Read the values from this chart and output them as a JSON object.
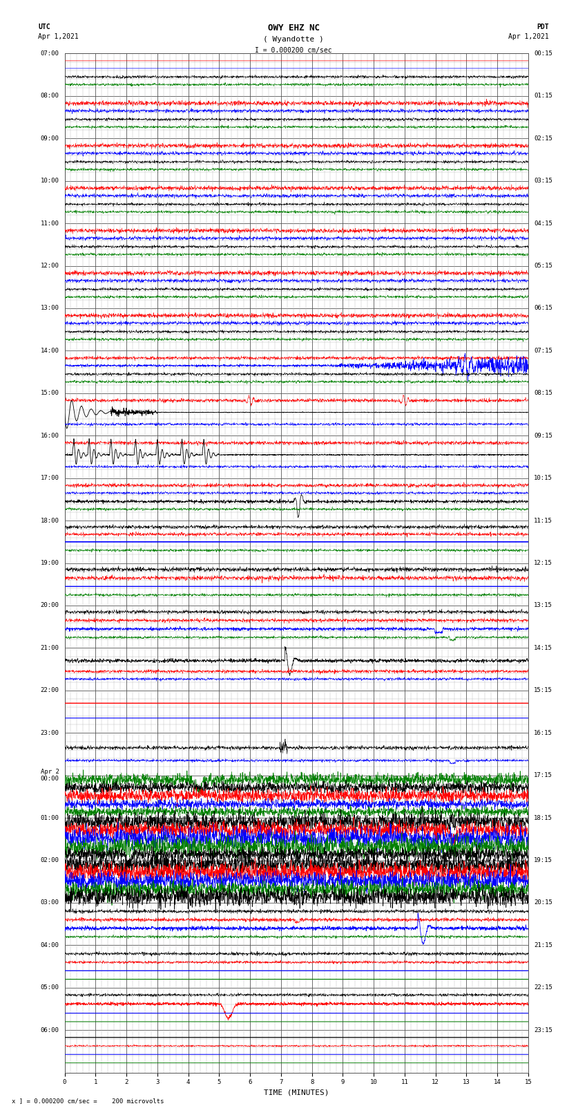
{
  "title_line1": "OWY EHZ NC",
  "title_line2": "( Wyandotte )",
  "scale_text": "I = 0.000200 cm/sec",
  "utc_label": "UTC",
  "utc_date": "Apr 1,2021",
  "pdt_label": "PDT",
  "pdt_date": "Apr 1,2021",
  "bottom_note": "x ] = 0.000200 cm/sec =    200 microvolts",
  "xlabel": "TIME (MINUTES)",
  "xlim": [
    0,
    15
  ],
  "xticks": [
    0,
    1,
    2,
    3,
    4,
    5,
    6,
    7,
    8,
    9,
    10,
    11,
    12,
    13,
    14,
    15
  ],
  "num_rows": 24,
  "bg_color": "#ffffff",
  "figure_width": 8.5,
  "figure_height": 16.13,
  "dpi": 100,
  "title_fontsize": 9,
  "label_fontsize": 7,
  "tick_fontsize": 6.5,
  "grid_major_color": "#555555",
  "grid_minor_color": "#bbbbbb",
  "utc_times_left": [
    "07:00",
    "08:00",
    "09:00",
    "10:00",
    "11:00",
    "12:00",
    "13:00",
    "14:00",
    "15:00",
    "16:00",
    "17:00",
    "18:00",
    "19:00",
    "20:00",
    "21:00",
    "22:00",
    "23:00",
    "Apr 2\n00:00",
    "01:00",
    "02:00",
    "03:00",
    "04:00",
    "05:00",
    "06:00"
  ],
  "pdt_times_right": [
    "00:15",
    "01:15",
    "02:15",
    "03:15",
    "04:15",
    "05:15",
    "06:15",
    "07:15",
    "08:15",
    "09:15",
    "10:15",
    "11:15",
    "12:15",
    "13:15",
    "14:15",
    "15:15",
    "16:15",
    "17:15",
    "18:15",
    "19:15",
    "20:15",
    "21:15",
    "22:15",
    "23:15"
  ]
}
